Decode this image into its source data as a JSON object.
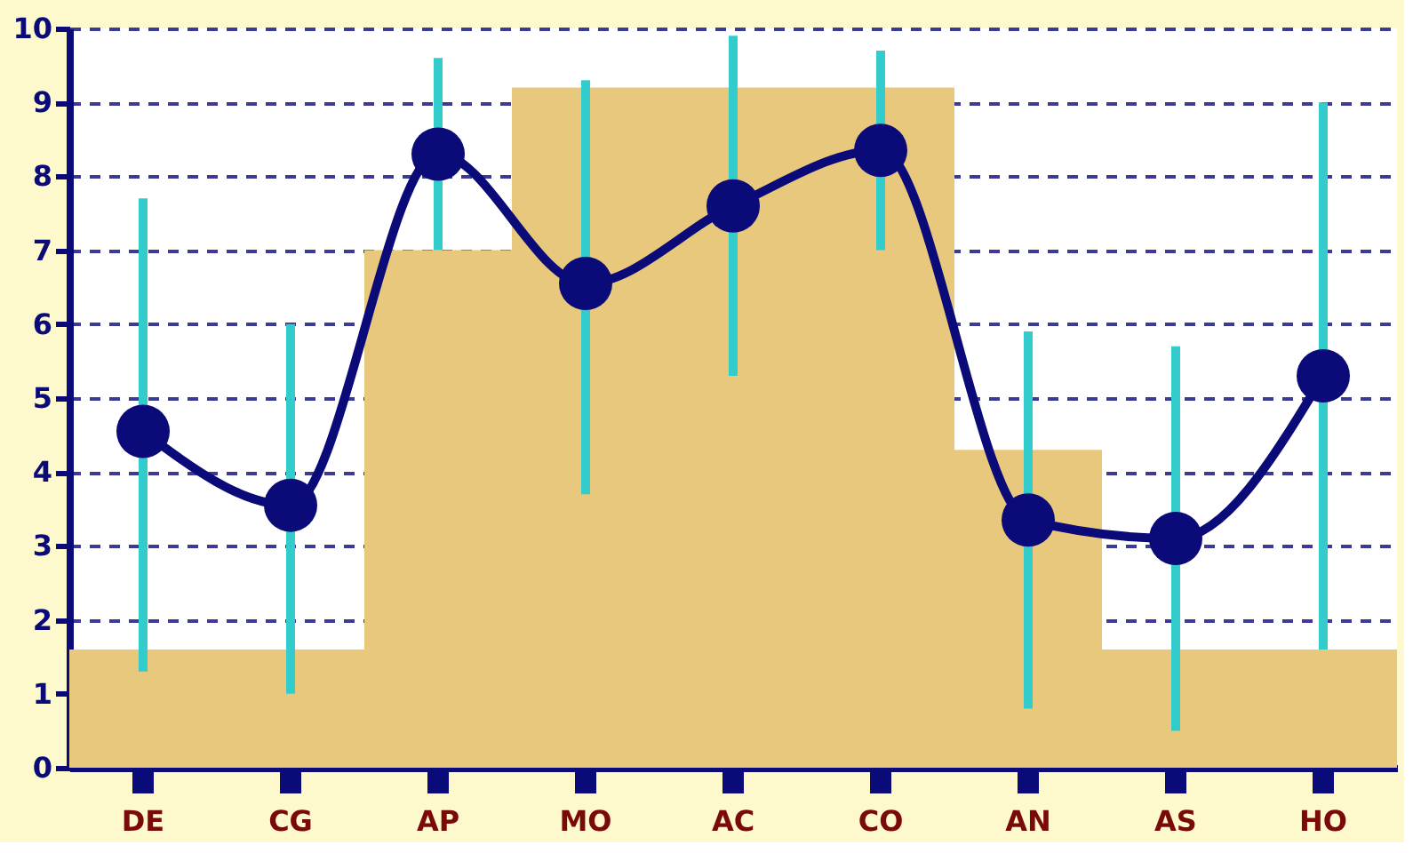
{
  "chart_data": {
    "type": "line",
    "categories": [
      "DE",
      "CG",
      "AP",
      "MO",
      "AC",
      "CO",
      "AN",
      "AS",
      "HO"
    ],
    "series": [
      {
        "type": "bar",
        "color": "#e8c87c",
        "values": [
          1.6,
          1.6,
          7.0,
          9.2,
          9.2,
          9.2,
          4.3,
          1.6,
          1.6
        ]
      },
      {
        "color": "#0a0a78",
        "values": [
          4.55,
          3.55,
          8.3,
          6.55,
          7.6,
          8.35,
          3.35,
          3.1,
          5.3
        ],
        "errors": [
          [
            1.3,
            7.7
          ],
          [
            1.0,
            6.0
          ],
          [
            7.0,
            9.6
          ],
          [
            3.7,
            9.3
          ],
          [
            5.3,
            9.9
          ],
          [
            7.0,
            9.7
          ],
          [
            0.8,
            5.9
          ],
          [
            0.5,
            5.7
          ],
          [
            1.6,
            9.0
          ]
        ]
      }
    ],
    "ylim": [
      0,
      10
    ],
    "yticks": [
      0,
      1,
      2,
      3,
      4,
      5,
      6,
      7,
      8,
      9,
      10
    ],
    "grid": "y",
    "marker": "circle",
    "line_style": "solid"
  }
}
